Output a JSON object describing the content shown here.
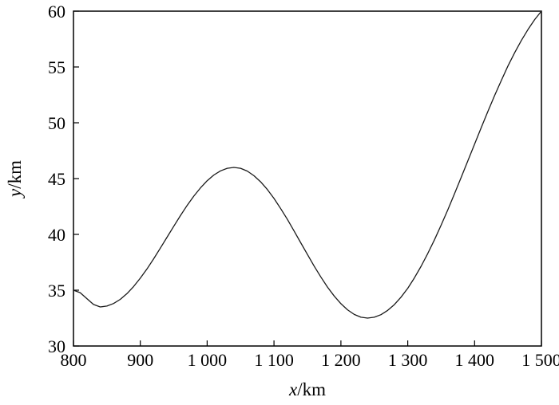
{
  "figure": {
    "background": "#ffffff"
  },
  "chart_data": {
    "type": "line",
    "title": "",
    "xlabel": "x/km",
    "ylabel": "y/km",
    "xlabel_var": "x",
    "xlabel_unit": "/km",
    "ylabel_var": "y",
    "ylabel_unit": "/km",
    "xlim": [
      800,
      1500
    ],
    "ylim": [
      30,
      60
    ],
    "grid": false,
    "legend": "none",
    "line_color": "#000000",
    "x_tick_labels": [
      "800",
      "900",
      "1 000",
      "1 100",
      "1 200",
      "1 300",
      "1 400",
      "1 500"
    ],
    "x_tick_values": [
      800,
      900,
      1000,
      1100,
      1200,
      1300,
      1400,
      1500
    ],
    "y_tick_labels": [
      "30",
      "35",
      "40",
      "45",
      "50",
      "55",
      "60"
    ],
    "y_tick_values": [
      30,
      35,
      40,
      45,
      50,
      55,
      60
    ],
    "x": [
      800,
      810,
      820,
      830,
      840,
      850,
      860,
      870,
      880,
      890,
      900,
      910,
      920,
      930,
      940,
      950,
      960,
      970,
      980,
      990,
      1000,
      1010,
      1020,
      1030,
      1040,
      1050,
      1060,
      1070,
      1080,
      1090,
      1100,
      1110,
      1120,
      1130,
      1140,
      1150,
      1160,
      1170,
      1180,
      1190,
      1200,
      1210,
      1220,
      1230,
      1240,
      1250,
      1260,
      1270,
      1280,
      1290,
      1300,
      1310,
      1320,
      1330,
      1340,
      1350,
      1360,
      1370,
      1380,
      1390,
      1400,
      1410,
      1420,
      1430,
      1440,
      1450,
      1460,
      1470,
      1480,
      1490,
      1500
    ],
    "y": [
      35.0,
      34.78,
      34.25,
      33.72,
      33.5,
      33.58,
      33.81,
      34.18,
      34.69,
      35.33,
      36.08,
      36.91,
      37.82,
      38.77,
      39.75,
      40.73,
      41.68,
      42.59,
      43.43,
      44.17,
      44.81,
      45.32,
      45.69,
      45.92,
      46.0,
      45.92,
      45.67,
      45.26,
      44.71,
      44.02,
      43.22,
      42.31,
      41.34,
      40.3,
      39.25,
      38.2,
      37.16,
      36.19,
      35.28,
      34.48,
      33.79,
      33.24,
      32.83,
      32.58,
      32.5,
      32.58,
      32.81,
      33.19,
      33.71,
      34.38,
      35.17,
      36.1,
      37.14,
      38.29,
      39.52,
      40.83,
      42.21,
      43.65,
      45.11,
      46.6,
      48.09,
      49.58,
      51.03,
      52.44,
      53.79,
      55.09,
      56.28,
      57.38,
      58.37,
      59.25,
      60.0
    ]
  }
}
